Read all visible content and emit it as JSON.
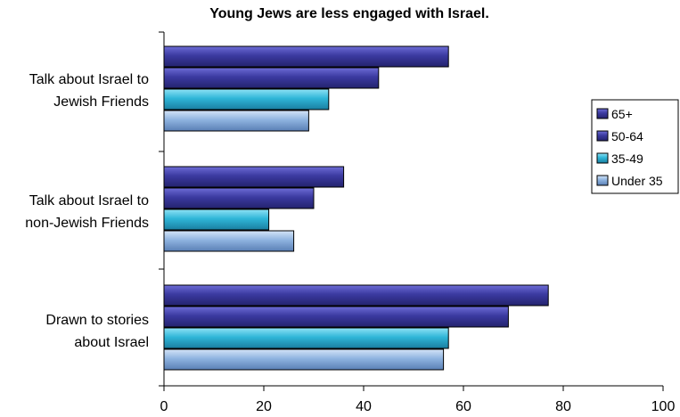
{
  "chart_data": {
    "type": "bar",
    "orientation": "horizontal",
    "title": "Young Jews are less engaged with Israel.",
    "categories": [
      [
        "Talk about Israel to",
        "Jewish Friends"
      ],
      [
        "Talk about Israel to",
        "non-Jewish Friends"
      ],
      [
        "Drawn to stories",
        "about Israel"
      ]
    ],
    "series": [
      {
        "name": "65+",
        "color": "#3b3aa0",
        "values": [
          57,
          36,
          77
        ]
      },
      {
        "name": "50-64",
        "color": "#3b3aa0",
        "values": [
          43,
          30,
          69
        ]
      },
      {
        "name": "35-49",
        "color": "#2fb6d8",
        "values": [
          33,
          21,
          57
        ]
      },
      {
        "name": "Under 35",
        "color": "#8fb4e0",
        "values": [
          29,
          26,
          56
        ]
      }
    ],
    "xlim": [
      0,
      100
    ],
    "xticks": [
      "0",
      "20",
      "40",
      "60",
      "80",
      "100"
    ],
    "grid": false,
    "legend_position": "right"
  }
}
